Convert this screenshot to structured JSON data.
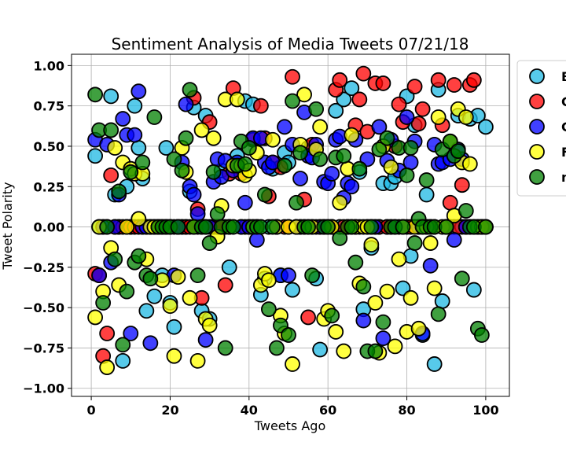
{
  "chart_data": {
    "type": "scatter",
    "title": "Sentiment Analysis of Media Tweets 07/21/18",
    "xlabel": "Tweets Ago",
    "ylabel": "Tweet Polarity",
    "xlim": [
      -5,
      106
    ],
    "ylim": [
      -1.05,
      1.07
    ],
    "xticks": [
      0,
      20,
      40,
      60,
      80,
      100
    ],
    "yticks": [
      -1.0,
      -0.75,
      -0.5,
      -0.25,
      0.0,
      0.25,
      0.5,
      0.75,
      1.0
    ],
    "xtick_labels": [
      "0",
      "20",
      "40",
      "60",
      "80",
      "100"
    ],
    "ytick_labels": [
      "−1.00",
      "−0.75",
      "−0.50",
      "−0.25",
      "0.00",
      "0.25",
      "0.50",
      "0.75",
      "1.00"
    ],
    "grid": true,
    "legend_position": "right, outside the plot, top",
    "series": [
      {
        "name": "B",
        "color": "#1fb8e3",
        "x": [
          1,
          2,
          3,
          4,
          5,
          6,
          7,
          8,
          9,
          10,
          11,
          12,
          13,
          14,
          15,
          16,
          17,
          18,
          19,
          20,
          21,
          22,
          23,
          24,
          25,
          26,
          27,
          28,
          29,
          30,
          31,
          32,
          33,
          34,
          35,
          36,
          37,
          38,
          39,
          40,
          41,
          42,
          43,
          44,
          45,
          46,
          47,
          48,
          49,
          50,
          51,
          52,
          53,
          54,
          55,
          56,
          57,
          58,
          59,
          60,
          61,
          62,
          63,
          64,
          65,
          66,
          67,
          68,
          69,
          70,
          71,
          72,
          73,
          74,
          75,
          76,
          77,
          78,
          79,
          80,
          81,
          82,
          83,
          84,
          85,
          86,
          87,
          88,
          89,
          90,
          91,
          92,
          93,
          94,
          95,
          96,
          97,
          98,
          99,
          100
        ],
        "y": [
          0.44,
          0,
          0,
          0,
          0.81,
          0.2,
          0,
          -0.83,
          0.25,
          0,
          0.75,
          0.49,
          0.3,
          -0.52,
          0,
          -0.43,
          0,
          -0.3,
          0.49,
          -0.47,
          -0.62,
          0,
          0,
          0,
          0.22,
          0.74,
          0,
          -0.52,
          0.69,
          -0.57,
          0,
          0,
          0.35,
          0,
          -0.25,
          0.38,
          0.44,
          0,
          0.78,
          0,
          0.76,
          0,
          -0.42,
          -0.32,
          0,
          0.36,
          0,
          -0.3,
          0.46,
          0.4,
          -0.39,
          0,
          0,
          0,
          0.49,
          0,
          -0.32,
          -0.76,
          0,
          0,
          0,
          0.72,
          0,
          0.79,
          0,
          0.86,
          0,
          0.34,
          -0.51,
          0,
          -0.13,
          0,
          0,
          0.27,
          0,
          0.27,
          0.31,
          0,
          -0.38,
          0.81,
          -0.18,
          0.63,
          0,
          -0.67,
          0.2,
          0,
          -0.85,
          0.85,
          -0.46,
          0,
          0,
          0,
          0.69,
          0,
          0,
          0.67,
          -0.39,
          0.69,
          0,
          0.62
        ]
      },
      {
        "name": "C",
        "color": "#ff0000",
        "x": [
          1,
          2,
          3,
          4,
          5,
          6,
          7,
          8,
          9,
          10,
          11,
          12,
          13,
          14,
          15,
          16,
          17,
          18,
          19,
          20,
          21,
          22,
          23,
          24,
          25,
          26,
          27,
          28,
          29,
          30,
          31,
          32,
          33,
          34,
          35,
          36,
          37,
          38,
          39,
          40,
          41,
          42,
          43,
          44,
          45,
          46,
          47,
          48,
          49,
          50,
          51,
          52,
          53,
          54,
          55,
          56,
          57,
          58,
          59,
          60,
          61,
          62,
          63,
          64,
          65,
          66,
          67,
          68,
          69,
          70,
          71,
          72,
          73,
          74,
          75,
          76,
          77,
          78,
          79,
          80,
          81,
          82,
          83,
          84,
          85,
          86,
          87,
          88,
          89,
          90,
          91,
          92,
          93,
          94,
          95,
          96,
          97,
          98,
          99,
          100
        ],
        "y": [
          -0.29,
          -0.3,
          -0.8,
          -0.66,
          0.32,
          0,
          0,
          0,
          0,
          0,
          0,
          0,
          0,
          0,
          0,
          0,
          0,
          0,
          0,
          0,
          0,
          0,
          0,
          0,
          0,
          0.8,
          0.11,
          -0.44,
          0,
          0.65,
          0,
          0,
          0,
          -0.36,
          0.33,
          0.86,
          0.38,
          0.33,
          0,
          0,
          0.54,
          0,
          0.75,
          0.55,
          0.19,
          0.4,
          0,
          0.37,
          0,
          0,
          0.93,
          0,
          0,
          0.17,
          -0.56,
          0.51,
          0,
          0,
          0,
          0,
          0,
          0.85,
          0.91,
          0,
          0,
          0,
          0.63,
          0.79,
          0.95,
          0.59,
          0,
          0.89,
          0,
          0.89,
          0,
          0,
          0.5,
          0.76,
          0.65,
          0,
          0,
          0.87,
          0.64,
          0.73,
          0,
          0,
          0,
          0.91,
          0.63,
          0,
          0.15,
          0.88,
          0,
          0.26,
          0,
          0.88,
          0.91,
          0,
          0,
          0
        ]
      },
      {
        "name": "C",
        "color": "#0000ff",
        "x": [
          1,
          2,
          3,
          4,
          5,
          6,
          7,
          8,
          9,
          10,
          11,
          12,
          13,
          14,
          15,
          16,
          17,
          18,
          19,
          20,
          21,
          22,
          23,
          24,
          25,
          26,
          27,
          28,
          29,
          30,
          31,
          32,
          33,
          34,
          35,
          36,
          37,
          38,
          39,
          40,
          41,
          42,
          43,
          44,
          45,
          46,
          47,
          48,
          49,
          50,
          51,
          52,
          53,
          54,
          55,
          56,
          57,
          58,
          59,
          60,
          61,
          62,
          63,
          64,
          65,
          66,
          67,
          68,
          69,
          70,
          71,
          72,
          73,
          74,
          75,
          76,
          77,
          78,
          79,
          80,
          81,
          82,
          83,
          84,
          85,
          86,
          87,
          88,
          89,
          90,
          91,
          92,
          93,
          94,
          95,
          96,
          97,
          98,
          99,
          100
        ],
        "y": [
          0.54,
          -0.3,
          0,
          0.51,
          -0.22,
          0,
          0.2,
          0.67,
          0.57,
          -0.66,
          0.57,
          0.84,
          0,
          0,
          -0.72,
          0,
          0,
          0,
          0,
          0,
          -0.3,
          0,
          0.4,
          0.76,
          0.25,
          0.2,
          0.08,
          0,
          -0.7,
          0,
          0.28,
          0.42,
          0.31,
          0.41,
          0,
          0.35,
          0.4,
          0,
          0.15,
          0,
          0.55,
          -0.08,
          0.55,
          0.4,
          0.37,
          0.4,
          0,
          -0.3,
          0.62,
          -0.3,
          0.51,
          0,
          0.3,
          0.71,
          0.44,
          0.43,
          0.51,
          0,
          0.28,
          0.27,
          0.33,
          0.54,
          0.56,
          0.18,
          0.27,
          0.25,
          0.54,
          0,
          -0.58,
          0.42,
          0,
          0,
          0.62,
          -0.69,
          0.41,
          0.54,
          0,
          0.35,
          0,
          0.68,
          0.4,
          0.53,
          0,
          -0.66,
          0,
          -0.24,
          0.51,
          0.39,
          0.4,
          0,
          0.42,
          -0.08,
          0.48,
          0.42,
          0,
          0,
          0,
          0,
          0,
          0
        ]
      },
      {
        "name": "F",
        "color": "#ffff00",
        "x": [
          1,
          2,
          3,
          4,
          5,
          6,
          7,
          8,
          9,
          10,
          11,
          12,
          13,
          14,
          15,
          16,
          17,
          18,
          19,
          20,
          21,
          22,
          23,
          24,
          25,
          26,
          27,
          28,
          29,
          30,
          31,
          32,
          33,
          34,
          35,
          36,
          37,
          38,
          39,
          40,
          41,
          42,
          43,
          44,
          45,
          46,
          47,
          48,
          49,
          50,
          51,
          52,
          53,
          54,
          55,
          56,
          57,
          58,
          59,
          60,
          61,
          62,
          63,
          64,
          65,
          66,
          67,
          68,
          69,
          70,
          71,
          72,
          73,
          74,
          75,
          76,
          77,
          78,
          79,
          80,
          81,
          82,
          83,
          84,
          85,
          86,
          87,
          88,
          89,
          90,
          91,
          92,
          93,
          94,
          95,
          96,
          97,
          98,
          99,
          100
        ],
        "y": [
          -0.56,
          0,
          -0.4,
          -0.87,
          -0.13,
          0.49,
          -0.36,
          0.4,
          0,
          0.36,
          0.33,
          0.05,
          0.33,
          -0.2,
          0,
          0,
          0,
          -0.33,
          0,
          -0.49,
          -0.8,
          -0.31,
          0.49,
          0.34,
          -0.44,
          0,
          -0.83,
          0.6,
          -0.57,
          -0.61,
          0.55,
          -0.06,
          0.13,
          0.79,
          0,
          0.38,
          0.79,
          0.38,
          0.32,
          0.35,
          0,
          0.46,
          -0.36,
          -0.29,
          -0.33,
          0.54,
          0,
          -0.55,
          -0.66,
          0,
          -0.85,
          0,
          0.51,
          0.82,
          0,
          0,
          0.48,
          0.62,
          -0.57,
          -0.52,
          0,
          -0.65,
          0.15,
          -0.77,
          0.36,
          0.57,
          0,
          -0.35,
          0,
          0,
          -0.11,
          -0.47,
          -0.78,
          0.5,
          -0.4,
          0.37,
          -0.74,
          -0.2,
          0,
          -0.65,
          -0.44,
          0,
          -0.63,
          0,
          0,
          -0.1,
          -0.38,
          0.68,
          0,
          0,
          0.53,
          0.07,
          0.73,
          0.4,
          0.68,
          0.39,
          0,
          0,
          0,
          0
        ]
      },
      {
        "name": "n",
        "color": "#008000",
        "x": [
          1,
          2,
          3,
          4,
          5,
          6,
          7,
          8,
          9,
          10,
          11,
          12,
          13,
          14,
          15,
          16,
          17,
          18,
          19,
          20,
          21,
          22,
          23,
          24,
          25,
          26,
          27,
          28,
          29,
          30,
          31,
          32,
          33,
          34,
          35,
          36,
          37,
          38,
          39,
          40,
          41,
          42,
          43,
          44,
          45,
          46,
          47,
          48,
          49,
          50,
          51,
          52,
          53,
          54,
          55,
          56,
          57,
          58,
          59,
          60,
          61,
          62,
          63,
          64,
          65,
          66,
          67,
          68,
          69,
          70,
          71,
          72,
          73,
          74,
          75,
          76,
          77,
          78,
          79,
          80,
          81,
          82,
          83,
          84,
          85,
          86,
          87,
          88,
          89,
          90,
          91,
          92,
          93,
          94,
          95,
          96,
          97,
          98,
          99,
          100
        ],
        "y": [
          0.82,
          0.6,
          -0.47,
          0,
          0.6,
          -0.2,
          0.22,
          -0.73,
          -0.4,
          0.34,
          -0.22,
          -0.18,
          0.4,
          -0.3,
          -0.32,
          0.68,
          0,
          0,
          0,
          0,
          0.42,
          0,
          0.35,
          0.55,
          0.85,
          0,
          -0.3,
          0,
          0,
          -0.1,
          0.34,
          0.08,
          0,
          -0.75,
          0,
          0,
          0.38,
          0.53,
          0.39,
          0.49,
          0,
          0,
          0,
          0.2,
          -0.51,
          0,
          -0.75,
          -0.61,
          0.38,
          -0.67,
          0.78,
          0.15,
          0.46,
          0,
          0,
          -0.3,
          0.73,
          0.42,
          0,
          0,
          -0.55,
          0.43,
          -0.07,
          0.44,
          0,
          0,
          -0.22,
          0.36,
          -0.37,
          -0.77,
          0,
          -0.77,
          0.48,
          -0.59,
          0.55,
          0,
          0,
          0.49,
          0,
          0.32,
          0.49,
          -0.1,
          0.05,
          0,
          0.29,
          0,
          0,
          -0.54,
          0.48,
          0,
          0.53,
          0.44,
          0.47,
          -0.32,
          0.1,
          0,
          0,
          -0.63,
          -0.67,
          0
        ]
      }
    ]
  }
}
